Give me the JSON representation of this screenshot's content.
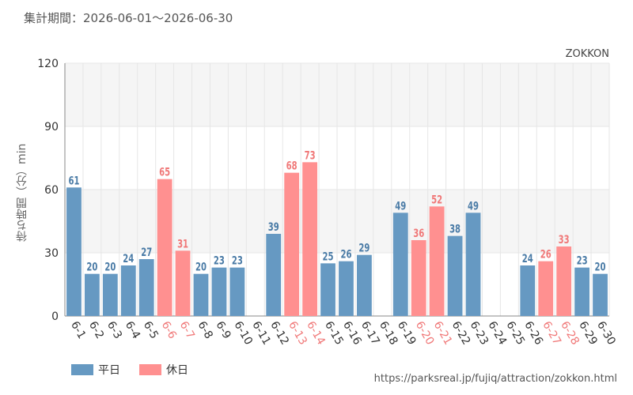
{
  "header": {
    "period_text": "集計期間：2026-06-01～2026-06-30"
  },
  "footer": {
    "source_text": "https://parksreal.jp/fujiq/attraction/zokkon.html"
  },
  "colors": {
    "weekday": "#6699c2",
    "holiday": "#ff9090",
    "weekday_label": "#4a7ba6",
    "holiday_label": "#f07878",
    "grid": "#e6e6e6",
    "band": "#f5f5f5"
  },
  "chart_data": {
    "type": "bar",
    "series_label": "ZOKKON",
    "ylabel": "待ち時間（分）min",
    "ylim": [
      0,
      120
    ],
    "yticks": [
      0,
      30,
      60,
      90,
      120
    ],
    "categories": [
      "6-1",
      "6-2",
      "6-3",
      "6-4",
      "6-5",
      "6-6",
      "6-7",
      "6-8",
      "6-9",
      "6-10",
      "6-11",
      "6-12",
      "6-13",
      "6-14",
      "6-15",
      "6-16",
      "6-17",
      "6-18",
      "6-19",
      "6-20",
      "6-21",
      "6-22",
      "6-23",
      "6-24",
      "6-25",
      "6-26",
      "6-27",
      "6-28",
      "6-29",
      "6-30"
    ],
    "values": [
      61,
      20,
      20,
      24,
      27,
      65,
      31,
      20,
      23,
      23,
      null,
      39,
      68,
      73,
      25,
      26,
      29,
      null,
      49,
      36,
      52,
      38,
      49,
      null,
      null,
      24,
      26,
      33,
      23,
      20
    ],
    "day_type": [
      "weekday",
      "weekday",
      "weekday",
      "weekday",
      "weekday",
      "holiday",
      "holiday",
      "weekday",
      "weekday",
      "weekday",
      "weekday",
      "weekday",
      "holiday",
      "holiday",
      "weekday",
      "weekday",
      "weekday",
      "weekday",
      "weekday",
      "holiday",
      "holiday",
      "weekday",
      "weekday",
      "weekday",
      "weekday",
      "weekday",
      "holiday",
      "holiday",
      "weekday",
      "weekday"
    ],
    "legend": [
      {
        "name": "平日",
        "type": "weekday"
      },
      {
        "name": "休日",
        "type": "holiday"
      }
    ],
    "legend_position": "bottom-left"
  }
}
